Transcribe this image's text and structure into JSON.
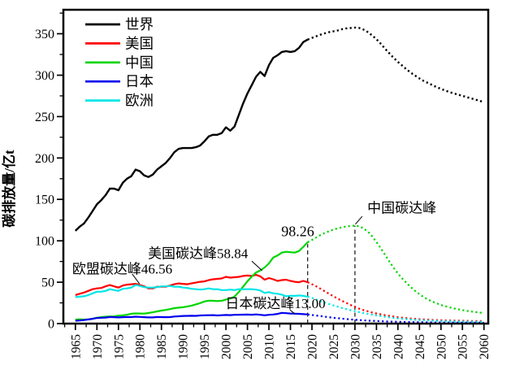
{
  "chart_data": {
    "type": "line",
    "title": "",
    "xlabel": "",
    "ylabel": "碳排放量/亿t",
    "xlim": [
      1962.2,
      2061.0
    ],
    "ylim": [
      0,
      379
    ],
    "grid": false,
    "x_ticks": [
      1965,
      1970,
      1975,
      1980,
      1985,
      1990,
      1995,
      2000,
      2005,
      2010,
      2015,
      2020,
      2025,
      2030,
      2035,
      2040,
      2045,
      2050,
      2055,
      2060
    ],
    "y_ticks": [
      0,
      50,
      100,
      150,
      200,
      250,
      300,
      350
    ],
    "legend": {
      "position": "top-left",
      "entries": [
        {
          "id": "world",
          "label": "世界",
          "color": "#000000"
        },
        {
          "id": "usa",
          "label": "美国",
          "color": "#ff0000"
        },
        {
          "id": "china",
          "label": "中国",
          "color": "#00d500"
        },
        {
          "id": "japan",
          "label": "日本",
          "color": "#0000ee"
        },
        {
          "id": "europe",
          "label": "欧洲",
          "color": "#00e6e6"
        }
      ]
    },
    "series": [
      {
        "id": "world",
        "name": "世界",
        "color": "#000000",
        "width": 2.4,
        "solid": {
          "start": 1965,
          "step": 1,
          "values": [
            112,
            117,
            121,
            128,
            136,
            144,
            149,
            155,
            163,
            163,
            161,
            170,
            175,
            178,
            186,
            184,
            179,
            177,
            180,
            186,
            190,
            194,
            200,
            207,
            211,
            212,
            212,
            212,
            213,
            215,
            220,
            226,
            228,
            228,
            230,
            237,
            233,
            238,
            252,
            266,
            278,
            288,
            298,
            304,
            299,
            312,
            321,
            324,
            328,
            329,
            328,
            329,
            333,
            340,
            343
          ]
        },
        "dotted": {
          "start": 2019,
          "step": 1,
          "values": [
            343,
            345,
            347,
            349,
            350.5,
            352,
            353,
            354,
            355.5,
            356.5,
            357,
            357.5,
            357,
            355,
            352,
            348,
            343.5,
            338,
            332,
            326.5,
            321,
            316,
            311.5,
            307,
            303,
            299.5,
            296,
            293,
            290.5,
            288,
            285.5,
            283.5,
            281.5,
            279.5,
            278,
            276.5,
            275,
            273.5,
            272,
            270.5,
            269,
            267.5
          ]
        }
      },
      {
        "id": "usa",
        "name": "美国",
        "color": "#ff0000",
        "width": 2.2,
        "solid": {
          "start": 1965,
          "step": 1,
          "values": [
            34.5,
            36,
            37.5,
            39.5,
            41.5,
            42.5,
            43,
            45,
            46.5,
            45,
            43.5,
            46,
            47,
            47.5,
            48,
            46.5,
            45,
            42.5,
            42.5,
            44.5,
            44.5,
            44.5,
            46,
            47.5,
            48.5,
            48,
            47.5,
            48.5,
            49.5,
            50.5,
            51,
            52.5,
            53.5,
            54,
            54.5,
            56.5,
            55.5,
            56,
            56.5,
            57.5,
            58,
            57.5,
            58.84,
            57,
            53,
            55,
            53.5,
            51.5,
            52.5,
            53,
            51.5,
            50.5,
            50,
            51.5,
            50
          ]
        },
        "dotted": {
          "start": 2019,
          "step": 1,
          "values": [
            50,
            47.5,
            45,
            42,
            39,
            36,
            33,
            30,
            27.5,
            25,
            22.5,
            20,
            18,
            16.3,
            14.8,
            13.4,
            12.2,
            11.1,
            10.1,
            9.2,
            8.4,
            7.7,
            7.1,
            6.6,
            6.1,
            5.7,
            5.3,
            5,
            4.7,
            4.4,
            4.2,
            4,
            3.8,
            3.6,
            3.5,
            3.4,
            3.3,
            3.2,
            3.1,
            3,
            3,
            2.9
          ]
        }
      },
      {
        "id": "china",
        "name": "中国",
        "color": "#00d500",
        "width": 2.2,
        "solid": {
          "start": 1965,
          "step": 1,
          "values": [
            4.8,
            5.2,
            4.8,
            5,
            5.9,
            7.1,
            7.9,
            8.3,
            8.6,
            8.7,
            9.6,
            9.9,
            10.7,
            11.9,
            12.3,
            12.2,
            12.1,
            12.8,
            13.6,
            14.7,
            15.7,
            16.5,
            17.5,
            18.7,
            19.2,
            19.7,
            20.7,
            21.7,
            23.2,
            24.7,
            26.7,
            27.7,
            27.6,
            27.2,
            27.6,
            29.1,
            30.2,
            32.7,
            38.2,
            44.7,
            51.2,
            56.7,
            61.7,
            64.2,
            67.7,
            72.7,
            79.7,
            82.2,
            85.7,
            86.7,
            86.2,
            85.7,
            87.7,
            92.7,
            98.26
          ]
        },
        "dotted": {
          "start": 2019,
          "step": 1,
          "values": [
            98.26,
            101,
            104,
            107,
            109.5,
            111.5,
            113.5,
            115,
            116.3,
            117.3,
            117.8,
            118.3,
            117.5,
            115,
            111,
            105.5,
            98.5,
            91,
            83,
            75,
            67.5,
            60.5,
            54.5,
            49,
            44,
            39.5,
            35.5,
            32,
            29,
            26.5,
            24.5,
            22.5,
            21,
            19.6,
            18.4,
            17.3,
            16.3,
            15.4,
            14.6,
            13.9,
            13.3,
            12.7
          ]
        }
      },
      {
        "id": "japan",
        "name": "日本",
        "color": "#0000ee",
        "width": 2.2,
        "solid": {
          "start": 1965,
          "step": 1,
          "values": [
            3.4,
            3.7,
            4.3,
            5,
            5.8,
            6.8,
            7,
            7.3,
            8,
            7.8,
            7.5,
            7.8,
            8,
            7.9,
            8.3,
            8.1,
            7.8,
            7.5,
            7.5,
            8,
            7.9,
            7.8,
            7.9,
            8.5,
            8.8,
            9.2,
            9.3,
            9.4,
            9.3,
            9.8,
            10,
            10.1,
            10.2,
            9.8,
            10.1,
            10.4,
            10.2,
            10.6,
            10.7,
            10.8,
            10.9,
            10.7,
            11.1,
            10.6,
            10,
            10.6,
            11,
            11.7,
            13,
            12.6,
            12.2,
            12,
            11.8,
            11.4,
            11.1
          ]
        },
        "dotted": {
          "start": 2019,
          "step": 1,
          "values": [
            11.1,
            10.4,
            9.7,
            9,
            8.3,
            7.7,
            7.1,
            6.5,
            6,
            5.5,
            5,
            4.6,
            4.2,
            3.9,
            3.6,
            3.3,
            3.1,
            2.9,
            2.7,
            2.5,
            2.3,
            2.2,
            2,
            1.9,
            1.8,
            1.7,
            1.6,
            1.55,
            1.5,
            1.45,
            1.4,
            1.35,
            1.3,
            1.25,
            1.2,
            1.18,
            1.15,
            1.12,
            1.1,
            1.08,
            1.05,
            1.03
          ]
        }
      },
      {
        "id": "europe",
        "name": "欧洲",
        "color": "#00e6e6",
        "width": 2.2,
        "solid": {
          "start": 1965,
          "step": 1,
          "values": [
            32,
            32.5,
            33,
            34.5,
            36.5,
            38.5,
            38.5,
            39.5,
            41.5,
            40.5,
            39.5,
            42,
            42.5,
            43.5,
            46.56,
            45.5,
            44,
            43.5,
            43.5,
            44,
            45,
            45,
            45.5,
            44.5,
            44.5,
            43.5,
            43,
            42,
            41.5,
            41,
            41.5,
            42.5,
            41.5,
            41.5,
            40.5,
            40.5,
            41,
            40.5,
            41.5,
            41.5,
            41.5,
            41.5,
            41,
            40,
            37,
            38,
            36.5,
            36,
            35,
            33,
            33.5,
            33.5,
            34,
            33.5,
            32.5
          ]
        },
        "dotted": {
          "start": 2019,
          "step": 1,
          "values": [
            32.5,
            31,
            29,
            27.2,
            25.4,
            23.7,
            22,
            20.4,
            18.9,
            17.5,
            16.2,
            15,
            13.8,
            12.7,
            11.7,
            10.7,
            9.8,
            9,
            8.2,
            7.5,
            6.9,
            6.3,
            5.8,
            5.4,
            5,
            4.6,
            4.3,
            4,
            3.7,
            3.5,
            3.3,
            3.1,
            3,
            2.85,
            2.7,
            2.6,
            2.5,
            2.4,
            2.35,
            2.3,
            2.25,
            2.2
          ]
        }
      }
    ],
    "annotations": [
      {
        "id": "eu-peak-label",
        "text": "欧盟碳达峰46.56",
        "year": 1975.9,
        "value": 66.5,
        "font": 17
      },
      {
        "id": "us-peak-label",
        "text": "美国碳达峰58.84",
        "year": 1993.5,
        "value": 85,
        "font": 17
      },
      {
        "id": "japan-peak-label",
        "text": "日本碳达峰13.00",
        "year": 2011.5,
        "value": 24.5,
        "font": 17
      },
      {
        "id": "china-2019-value",
        "text": "98.26",
        "year": 2016.7,
        "value": 111.5,
        "font": 18
      },
      {
        "id": "china-peak-label",
        "text": "中国碳达峰",
        "year": 2040.9,
        "value": 140,
        "font": 17
      }
    ],
    "leader_lines": [
      {
        "for": "eu-peak-label",
        "x1": 1978.2,
        "y1": 60,
        "x2": 1979.9,
        "y2": 48
      },
      {
        "for": "us-peak-label",
        "x1": 2006.0,
        "y1": 75.5,
        "x2": 2008.4,
        "y2": 64
      },
      {
        "for": "japan-peak-label",
        "x1": 2014.9,
        "y1": 16.5,
        "x2": 2016.1,
        "y2": 11.5
      },
      {
        "for": "china-peak-label",
        "x1": 2031.7,
        "y1": 129.5,
        "x2": 2030.1,
        "y2": 120
      }
    ],
    "dashed_vlines": [
      {
        "id": "china-2019-line",
        "year": 2019,
        "v1": 0,
        "v2": 96
      },
      {
        "id": "china-peak-line",
        "year": 2030,
        "v1": 0,
        "v2": 118.3
      }
    ],
    "colors": {
      "axis": "#000000",
      "dashed_line": "#111111",
      "text": "#000000",
      "background": "#ffffff"
    }
  }
}
